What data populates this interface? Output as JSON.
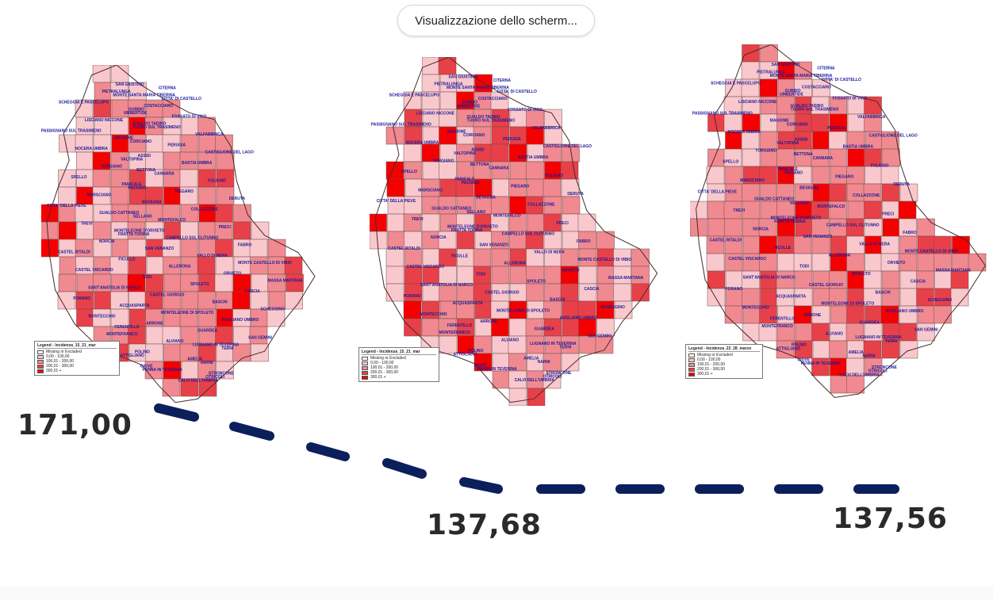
{
  "window": {
    "screen_share_chip": "Visualizzazione dello scherm..."
  },
  "colors": {
    "missing": "#ffffff",
    "c0_100": "#f9c8cc",
    "c100_200": "#f08a90",
    "c200_300": "#e84048",
    "c300_plus": "#f40000",
    "dash": "#0b1f5c"
  },
  "maps": [
    {
      "legend_title": "Legend - Incidenza_15_21_mar",
      "legend_items": [
        "Missing or Excluded",
        "0,00 - 100,00",
        "100,01 - 200,00",
        "200,01 - 300,00",
        "300,01 +"
      ],
      "labels": [
        "SAN GIUSTINO",
        "CITERNA",
        "PIETRALUNGA",
        "MONTE SANTA MARIA TIBERINA",
        "CITTA' DI CASTELLO",
        "SCHEGGIA E PASCELUPO",
        "COSTACCIARO",
        "GUBBIO",
        "UMBERTIDE",
        "FOSSATO DI VICO",
        "LISCIANO NICCONE",
        "GUALDO TADINO",
        "TUORO SUL TRASIMENO",
        "PASSIGNANO SUL TRASIMENO",
        "VALFABBRICA",
        "MAGIONE",
        "CORCIANO",
        "PERUGIA",
        "NOCERA UMBRA",
        "CASTIGLIONE DEL LAGO",
        "ASSISI",
        "VALTOPINA",
        "BASTIA UMBRA",
        "TORGIANO",
        "BETTONA",
        "CANNARA",
        "SPELLO",
        "FOLIGNO",
        "PANICALE",
        "PACIANO",
        "PIEGARO",
        "MARSCIANO",
        "DERUTA",
        "BEVAGNA",
        "CITTA' DELLA PIEVE",
        "COLLAZZONE",
        "GUALDO CATTANEO",
        "SELLANO",
        "MONTEFALCO",
        "TREVI",
        "PRECI",
        "MONTELEONE D'ORVIETO",
        "FRATTA TODINA",
        "CAMPELLO SUL CLITUNNO",
        "NORCIA",
        "FABRO",
        "SAN VENANZO",
        "CASTEL RITALDI",
        "VALLO DI NERA",
        "FICULLE",
        "MONTE CASTELLO DI VIBIO",
        "ALLERONA",
        "CASTEL VISCARDO",
        "ORVIETO",
        "TODI",
        "MASSA MARTANA",
        "SPOLETO",
        "SANT'ANATOLIA DI NARCO",
        "CASCIA",
        "CASTEL GIORGIO",
        "PORANO",
        "BASCHI",
        "ACQUASPARTA",
        "SCHEGGINO",
        "MONTELEONE DI SPOLETO",
        "MONTECCHIO",
        "AVIGLIANO UMBRO",
        "ARRONE",
        "FERENTILLO",
        "GUARDEA",
        "MONTEFRANCO",
        "SAN GEMINI",
        "ALVIANO",
        "LUGNANO IN TEVERINA",
        "TERNI",
        "POLINO",
        "ATTIGLIANO",
        "AMELIA",
        "NARNI",
        "GIOVE",
        "PENNA IN TEVERINA",
        "STRONCONE",
        "OTRICOLI",
        "CALVI DELL'UMBRIA"
      ]
    },
    {
      "legend_title": "Legend - Incidenza_15_21_mar",
      "legend_items": [
        "Missing or Excluded",
        "0,00 - 100,00",
        "100,01 - 200,00",
        "200,01 - 300,00",
        "300,01 +"
      ],
      "labels": [
        "SAN GIUSTINO",
        "CITERNA",
        "PIETRALUNGA",
        "MONTE SANTA MARIA TIBERINA",
        "CITTA' DI CASTELLO",
        "SCHEGGIA E PASCELUPO",
        "COSTACCIARO",
        "GUBBIO",
        "UMBERTIDE",
        "FOSSATO DI VICO",
        "LISCIANO NICCONE",
        "GUALDO TADINO",
        "TUORO SUL TRASIMENO",
        "PASSIGNANO SUL TRASIMENO",
        "VALFABBRICA",
        "MAGIONE",
        "CORCIANO",
        "PERUGIA",
        "NOCERA UMBRA",
        "CASTIGLIONE DEL LAGO",
        "ASSISI",
        "VALTOPINA",
        "BASTIA UMBRA",
        "TORGIANO",
        "BETTONA",
        "CANNARA",
        "SPELLO",
        "FOLIGNO",
        "PANICALE",
        "PACIANO",
        "PIEGARO",
        "MARSCIANO",
        "DERUTA",
        "BEVAGNA",
        "CITTA' DELLA PIEVE",
        "COLLAZZONE",
        "GUALDO CATTANEO",
        "SELLANO",
        "MONTEFALCO",
        "TREVI",
        "PRECI",
        "MONTELEONE D'ORVIETO",
        "FRATTA TODINA",
        "CAMPELLO SUL CLITUNNO",
        "NORCIA",
        "FABRO",
        "SAN VENANZO",
        "CASTEL RITALDI",
        "VALLO DI NERA",
        "FICULLE",
        "MONTE CASTELLO DI VIBIO",
        "ALLERONA",
        "CASTEL VISCARDO",
        "ORVIETO",
        "TODI",
        "MASSA MARTANA",
        "SPOLETO",
        "SANT'ANATOLIA DI NARCO",
        "CASCIA",
        "CASTEL GIORGIO",
        "PORANO",
        "BASCHI",
        "ACQUASPARTA",
        "SCHEGGINO",
        "MONTELEONE DI SPOLETO",
        "MONTECCHIO",
        "AVIGLIANO UMBRO",
        "ARRONE",
        "FERENTILLO",
        "GUARDEA",
        "MONTEFRANCO",
        "SAN GEMINI",
        "ALVIANO",
        "LUGNANO IN TEVERINA",
        "TERNI",
        "POLINO",
        "ATTIGLIANO",
        "AMELIA",
        "NARNI",
        "GIOVE",
        "PENNA IN TEVERINA",
        "STRONCONE",
        "OTRICOLI",
        "CALVI DELL'UMBRIA"
      ]
    },
    {
      "legend_title": "Legend - Incidenza_22_28_marzo",
      "legend_items": [
        "Missing or Excluded",
        "0,00 - 100,00",
        "100,01 - 200,00",
        "200,01 - 300,00",
        "300,01 +"
      ],
      "labels": [
        "SAN GIUSTINO",
        "CITERNA",
        "PIETRALUNGA",
        "MONTE SANTA MARIA TIBERINA",
        "CITTA' DI CASTELLO",
        "SCHEGGIA E PASCELUPO",
        "COSTACCIARO",
        "GUBBIO",
        "UMBERTIDE",
        "FOSSATO DI VICO",
        "LISCIANO NICCONE",
        "GUALDO TADINO",
        "TUORO SUL TRASIMENO",
        "PASSIGNANO SUL TRASIMENO",
        "VALFABBRICA",
        "MAGIONE",
        "CORCIANO",
        "PERUGIA",
        "NOCERA UMBRA",
        "CASTIGLIONE DEL LAGO",
        "ASSISI",
        "VALTOPINA",
        "BASTIA UMBRA",
        "TORGIANO",
        "BETTONA",
        "CANNARA",
        "SPELLO",
        "FOLIGNO",
        "PANICALE",
        "PACIANO",
        "PIEGARO",
        "MARSCIANO",
        "DERUTA",
        "BEVAGNA",
        "CITTA' DELLA PIEVE",
        "COLLAZZONE",
        "GUALDO CATTANEO",
        "SELLANO",
        "MONTEFALCO",
        "TREVI",
        "PRECI",
        "MONTELEONE D'ORVIETO",
        "FRATTA TODINA",
        "CAMPELLO SUL CLITUNNO",
        "NORCIA",
        "FABRO",
        "SAN VENANZO",
        "CASTEL RITALDI",
        "VALLO DI NERA",
        "FICULLE",
        "MONTE CASTELLO DI VIBIO",
        "ALLERONA",
        "CASTEL VISCARDO",
        "ORVIETO",
        "TODI",
        "MASSA MARTANA",
        "SPOLETO",
        "SANT'ANATOLIA DI NARCO",
        "CASCIA",
        "CASTEL GIORGIO",
        "PORANO",
        "BASCHI",
        "ACQUASPARTA",
        "SCHEGGINO",
        "MONTELEONE DI SPOLETO",
        "MONTECCHIO",
        "AVIGLIANO UMBRO",
        "ARRONE",
        "FERENTILLO",
        "GUARDEA",
        "MONTEFRANCO",
        "SAN GEMINI",
        "ALVIANO",
        "LUGNANO IN TEVERINA",
        "TERNI",
        "POLINO",
        "ATTIGLIANO",
        "AMELIA",
        "NARNI",
        "GIOVE",
        "PENNA IN TEVERINA",
        "STRONCONE",
        "OTRICOLI",
        "CALVI DELL'UMBRIA"
      ]
    }
  ],
  "trend": {
    "values": [
      "171,00",
      "137,68",
      "137,56"
    ]
  }
}
